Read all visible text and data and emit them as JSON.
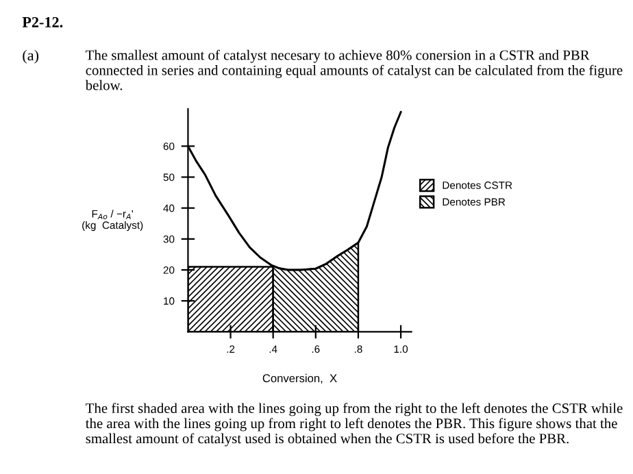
{
  "chart_data": {
    "type": "line",
    "title": "P2-12.",
    "subtitle": "The smallest amount of catalyst necesary to achieve 80% conersion in a CSTR and PBR connected in series and containing equal amounts of catalyst can be calculated from the figure below.",
    "xlabel": "Conversion,  X",
    "ylabel": "F$_{Ao}$ / −r$_{A}$'\n(kg  Catalyst)",
    "annotations": [
      "(a)",
      "The first shaded area with the lines going up from the right to the left denotes the CSTR while the area with the lines going up from right to left denotes the PBR. This figure shows that the smallest amount of catalyst used is obtained when the CSTR is used before the PBR."
    ],
    "series": [
      {
        "color": "#000000",
        "x": [
          0,
          0.04,
          0.08,
          0.13,
          0.19,
          0.24,
          0.29,
          0.34,
          0.39,
          0.43,
          0.47,
          0.53,
          0.6,
          0.65,
          0.7,
          0.75,
          0.8,
          0.84,
          0.875,
          0.91,
          0.94,
          0.97,
          1.0
        ],
        "values": [
          60,
          55,
          50.8,
          44,
          37.6,
          32,
          27.3,
          24,
          21.6,
          20.5,
          20,
          20,
          20.4,
          22,
          24.4,
          26.5,
          28.8,
          34,
          42,
          50,
          59.6,
          66,
          71
        ]
      },
      {
        "type": "area",
        "name": "Denotes CSTR",
        "color": "#000000",
        "x": [
          0,
          0.4
        ],
        "values": [
          21,
          21
        ]
      },
      {
        "type": "area",
        "name": "Denotes PBR",
        "color": "#000000",
        "x": [
          0.4,
          0.43,
          0.47,
          0.53,
          0.6,
          0.65,
          0.7,
          0.75,
          0.8
        ],
        "values": [
          21.3,
          20.5,
          20,
          20,
          20.4,
          22,
          24.4,
          26.5,
          28.8
        ]
      }
    ],
    "xlim": [
      0,
      1.05
    ],
    "ylim": [
      0,
      72
    ],
    "xticks": [
      {
        "value": 0.2,
        "label": ".2"
      },
      {
        "value": 0.4,
        "label": ".4"
      },
      {
        "value": 0.6,
        "label": ".6"
      },
      {
        "value": 0.8,
        "label": ".8"
      },
      {
        "value": 1.0,
        "label": "1.0"
      }
    ],
    "yticks": [
      10,
      20,
      30,
      40,
      50,
      60
    ],
    "legend": "right",
    "grid": false,
    "marker": "none",
    "line_style": "solid"
  }
}
